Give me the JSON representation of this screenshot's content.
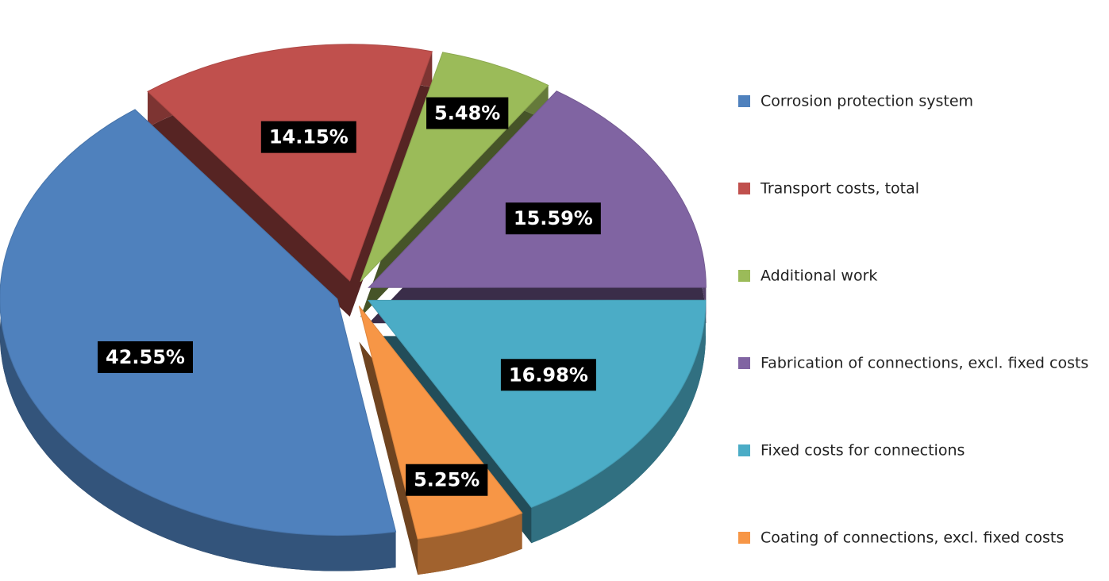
{
  "chart_data": {
    "type": "pie",
    "categories": [
      "Corrosion protection system",
      "Transport costs, total",
      "Additional work",
      "Fabrication of connections, excl. fixed costs",
      "Fixed costs for connections",
      "Coating of connections, excl. fixed costs"
    ],
    "values": [
      42.55,
      14.15,
      5.48,
      15.59,
      16.98,
      5.25
    ],
    "value_labels": [
      "42.55%",
      "14.15%",
      "5.48%",
      "15.59%",
      "16.98%",
      "5.25%"
    ],
    "colors": [
      "#4f81bd",
      "#c0504d",
      "#9bbb59",
      "#8064a2",
      "#4bacc6",
      "#f79646"
    ],
    "legend": "right"
  }
}
